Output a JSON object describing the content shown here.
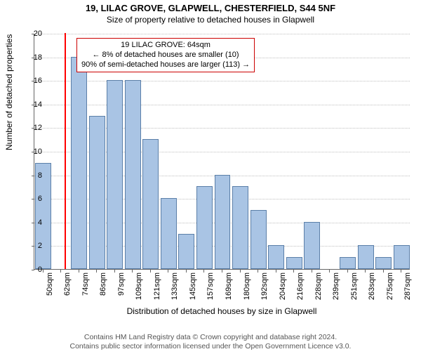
{
  "title_line1": "19, LILAC GROVE, GLAPWELL, CHESTERFIELD, S44 5NF",
  "title_line2": "Size of property relative to detached houses in Glapwell",
  "ylabel": "Number of detached properties",
  "xlabel": "Distribution of detached houses by size in Glapwell",
  "footer_line1": "Contains HM Land Registry data © Crown copyright and database right 2024.",
  "footer_line2": "Contains public sector information licensed under the Open Government Licence v3.0.",
  "chart": {
    "type": "bar",
    "background_color": "#ffffff",
    "grid_color": "#bfbfbf",
    "axis_color": "#666666",
    "bar_color": "#a9c4e4",
    "bar_border_color": "#5b7fa8",
    "marker_color": "#ff0000",
    "anno_border_color": "#cc0000",
    "anno_bg_color": "#ffffff",
    "ylim": [
      0,
      20
    ],
    "ytick_step": 2,
    "bar_gap_ratio": 0.9,
    "marker_value": 64,
    "x_categories": [
      "50sqm",
      "62sqm",
      "74sqm",
      "86sqm",
      "97sqm",
      "109sqm",
      "121sqm",
      "133sqm",
      "145sqm",
      "157sqm",
      "169sqm",
      "180sqm",
      "192sqm",
      "204sqm",
      "216sqm",
      "228sqm",
      "239sqm",
      "251sqm",
      "263sqm",
      "275sqm",
      "287sqm"
    ],
    "values": [
      9,
      0,
      18,
      13,
      16,
      16,
      11,
      6,
      3,
      7,
      8,
      7,
      5,
      2,
      1,
      4,
      0,
      1,
      2,
      1,
      2
    ],
    "annotation": {
      "line1": "19 LILAC GROVE: 64sqm",
      "line2": "← 8% of detached houses are smaller (10)",
      "line3": "90% of semi-detached houses are larger (113) →"
    }
  }
}
